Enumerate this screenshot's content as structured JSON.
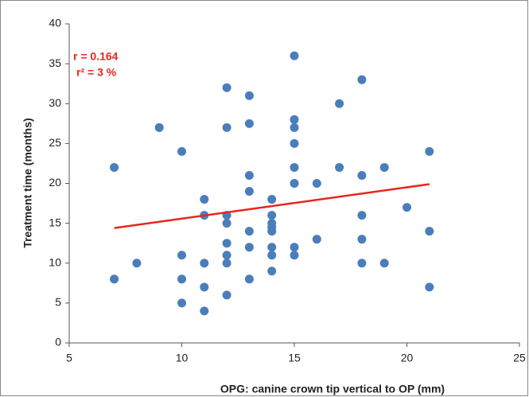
{
  "chart_data": {
    "type": "scatter",
    "x_label": "OPG: canine crown tip vertical to OP (mm)",
    "y_label": "Treatment time (months)",
    "annotations": [
      "r = 0.164",
      "r² = 3 %"
    ],
    "color": "#4a7ebb",
    "x": [
      7,
      7,
      8,
      9,
      10,
      10,
      10,
      10,
      11,
      11,
      11,
      11,
      11,
      12,
      12,
      12,
      12,
      12,
      12,
      12,
      12,
      13,
      13,
      13,
      13,
      13,
      13,
      13,
      14,
      14,
      14,
      14,
      14,
      14,
      14,
      14,
      15,
      15,
      15,
      15,
      15,
      15,
      15,
      15,
      16,
      16,
      17,
      17,
      18,
      18,
      18,
      18,
      18,
      19,
      19,
      20,
      21,
      21,
      21
    ],
    "y": [
      22,
      8,
      10,
      27,
      24,
      11,
      8,
      5,
      18,
      16,
      10,
      7,
      4,
      32,
      27,
      16,
      15,
      12.5,
      11,
      10,
      6,
      31,
      27.5,
      21,
      19,
      14,
      12,
      8,
      18,
      16,
      15,
      14.5,
      14,
      12,
      11,
      9,
      36,
      28,
      27,
      25,
      22,
      20,
      12,
      11,
      20,
      13,
      30,
      22,
      33,
      21,
      16,
      13,
      10,
      22,
      10,
      17,
      24,
      14,
      7
    ],
    "trendline": {
      "color": "#e8261c",
      "x": [
        7,
        21
      ],
      "y": [
        14.4,
        19.9
      ]
    },
    "xlim": [
      5,
      25
    ],
    "xticks": [
      5,
      10,
      15,
      20,
      25
    ],
    "ylim": [
      0,
      40
    ],
    "yticks": [
      0,
      5,
      10,
      15,
      20,
      25,
      30,
      35,
      40
    ],
    "grid": false
  }
}
